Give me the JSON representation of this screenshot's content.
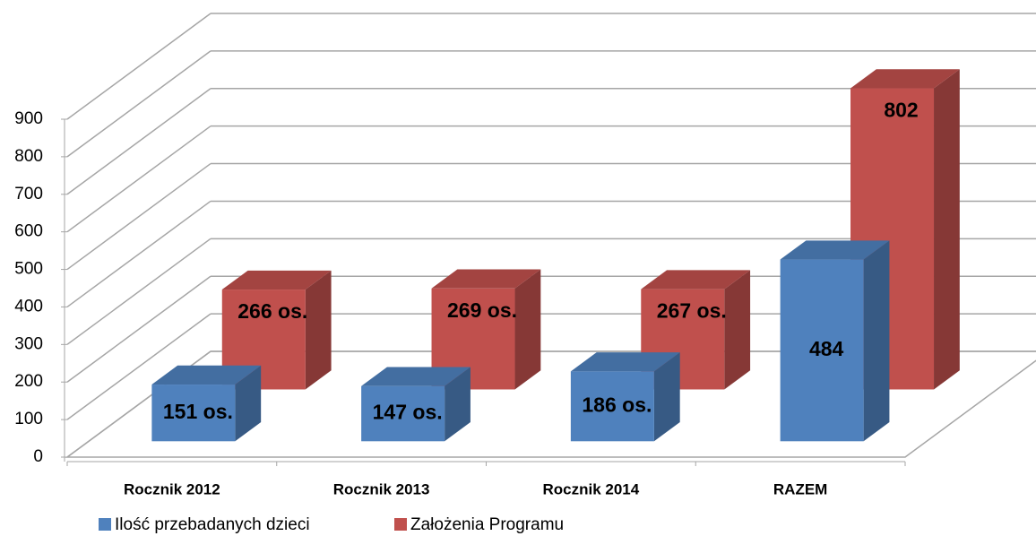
{
  "chart_data": {
    "type": "bar3d",
    "categories": [
      "Rocznik 2012",
      "Rocznik 2013",
      "Rocznik 2014",
      "RAZEM"
    ],
    "series": [
      {
        "name": "Ilość przebadanych dzieci",
        "color": "#4f81bd",
        "values": [
          151,
          147,
          186,
          484
        ],
        "value_labels": [
          "151 os.",
          "147 os.",
          "186 os.",
          "484"
        ]
      },
      {
        "name": "Założenia Programu",
        "color": "#c0504d",
        "values": [
          266,
          269,
          267,
          802
        ],
        "value_labels": [
          "266 os.",
          "269 os.",
          "267 os.",
          "802"
        ]
      }
    ],
    "ylim": [
      0,
      900
    ],
    "yticks": [
      0,
      100,
      200,
      300,
      400,
      500,
      600,
      700,
      800,
      900
    ],
    "grid": true,
    "legend": "bottom"
  }
}
